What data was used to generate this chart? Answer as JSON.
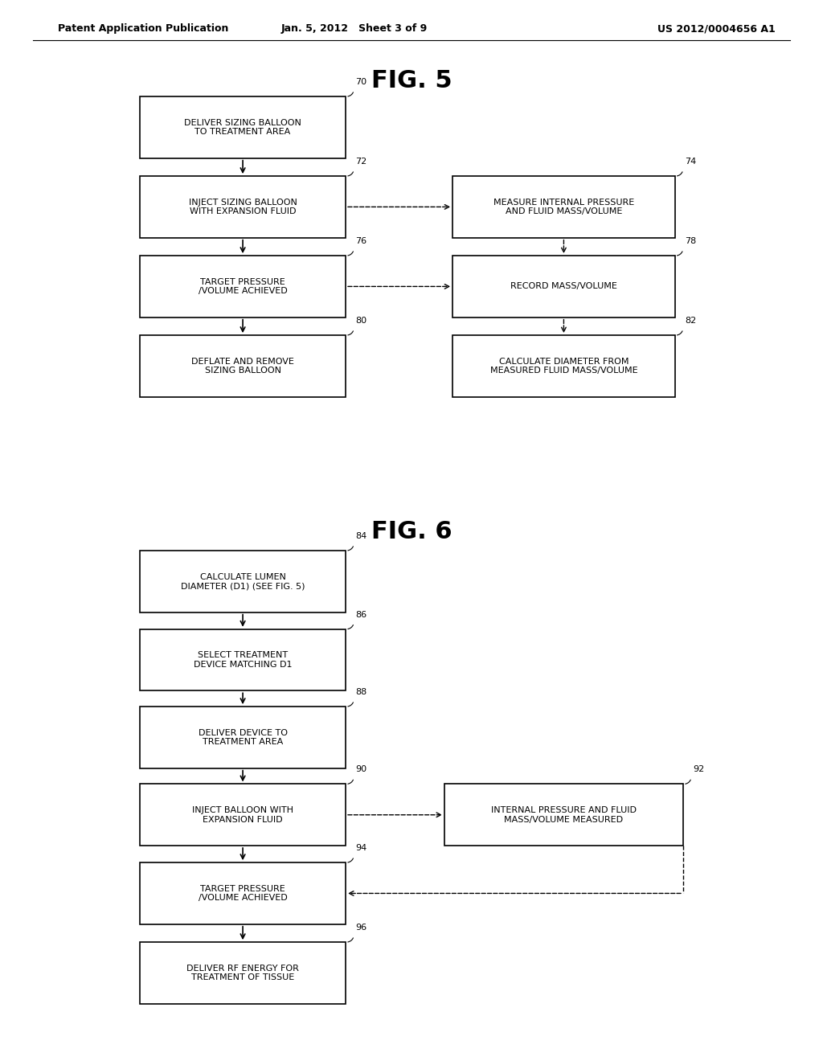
{
  "header_left": "Patent Application Publication",
  "header_mid": "Jan. 5, 2012   Sheet 3 of 9",
  "header_right": "US 2012/0004656 A1",
  "fig5_title": "FIG. 5",
  "fig6_title": "FIG. 6",
  "background": "#ffffff"
}
